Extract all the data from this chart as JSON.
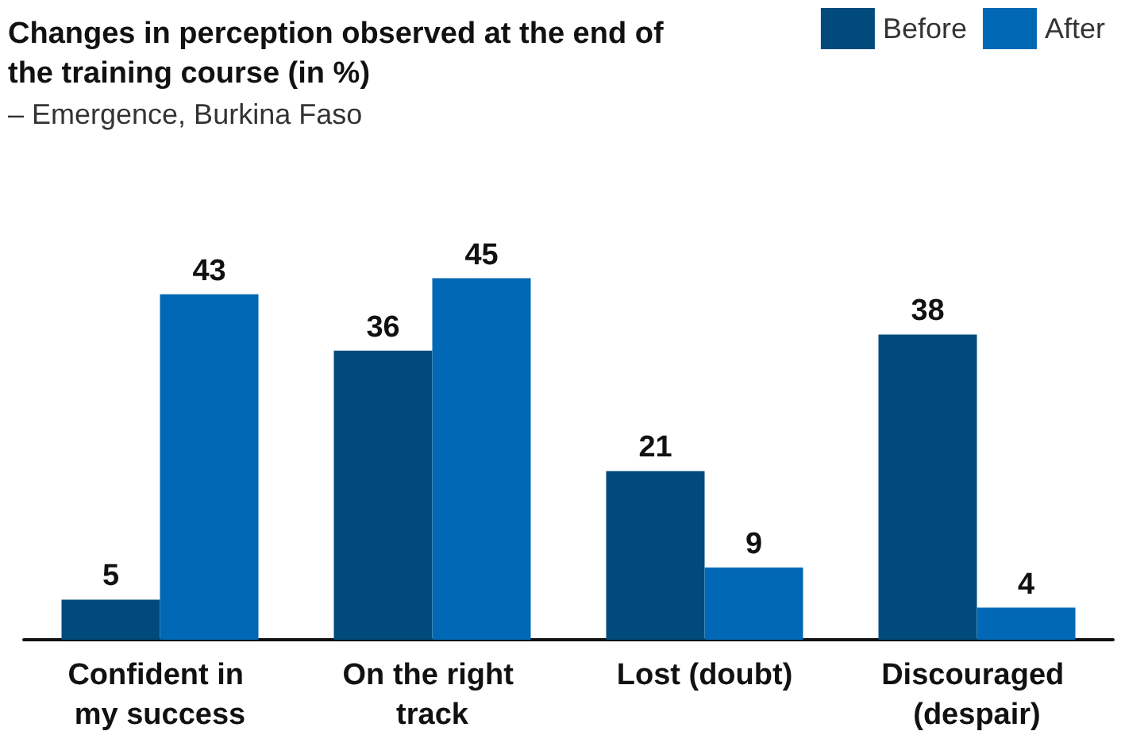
{
  "chart_data": {
    "type": "bar",
    "title": "Changes in perception observed at the end of the training course (in %)",
    "subtitle": "– Emergence, Burkina Faso",
    "categories": [
      "Confident in my success",
      "On the right track",
      "Lost (doubt)",
      "Discouraged (despair)"
    ],
    "series": [
      {
        "name": "Before",
        "color": "#004a7c",
        "values": [
          5,
          36,
          21,
          38
        ]
      },
      {
        "name": "After",
        "color": "#0068b4",
        "values": [
          43,
          45,
          9,
          4
        ]
      }
    ],
    "data_labels": true,
    "legend": "top right"
  }
}
